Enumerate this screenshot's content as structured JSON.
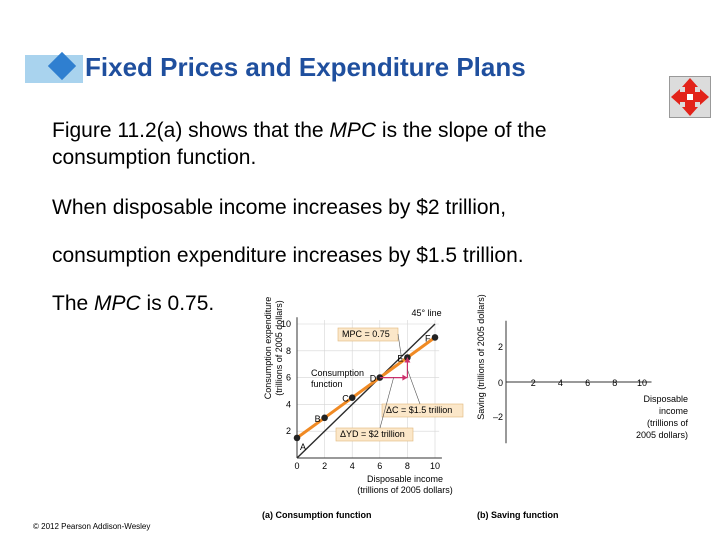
{
  "slide": {
    "title": "Fixed Prices and Expenditure Plans",
    "para1": {
      "pre": "Figure 11.2(a) shows that the ",
      "em": "MPC",
      "post": " is the slope of the consumption function."
    },
    "para2": "When disposable income increases by $2 trillion,",
    "para3": "consumption expenditure increases by $1.5 trillion.",
    "para4": {
      "pre": "The ",
      "em": "MPC",
      "post": " is 0.75."
    },
    "copyright": "© 2012 Pearson Addison-Wesley",
    "nav_icon": "move-arrows-icon"
  },
  "colors": {
    "title": "#1f4f9e",
    "accent": "#2f7fd0",
    "curve": "#f08a24",
    "label_box": "#fbe7c9",
    "arrow": "#cc2f6b"
  },
  "chart_data": [
    {
      "type": "line",
      "ylabel": "Consumption expenditure (trillions of 2005 dollars)",
      "xlabel": "Disposable income (trillions of 2005 dollars)",
      "caption": "(a) Consumption function",
      "xlim": [
        0,
        10
      ],
      "ylim": [
        0,
        10
      ],
      "xticks": [
        "0",
        "2",
        "4",
        "6",
        "8",
        "10"
      ],
      "yticks": [
        "2",
        "4",
        "6",
        "8",
        "10"
      ],
      "series": [
        {
          "name": "45° line",
          "x": [
            0,
            10
          ],
          "y": [
            0,
            10
          ]
        },
        {
          "name": "Consumption function",
          "x": [
            0,
            2,
            4,
            6,
            8,
            10
          ],
          "y": [
            1.5,
            3,
            4.5,
            6,
            7.5,
            9
          ]
        }
      ],
      "points": [
        {
          "label": "A",
          "x": 0,
          "y": 1.5
        },
        {
          "label": "B",
          "x": 2,
          "y": 3
        },
        {
          "label": "C",
          "x": 4,
          "y": 4.5
        },
        {
          "label": "D",
          "x": 6,
          "y": 6
        },
        {
          "label": "E",
          "x": 8,
          "y": 7.5
        },
        {
          "label": "F",
          "x": 10,
          "y": 9
        }
      ],
      "annotations": {
        "mpc": "MPC = 0.75",
        "dc": "ΔC = $1.5 trillion",
        "dyd": "ΔYD = $2 trillion"
      }
    },
    {
      "type": "line",
      "ylabel": "Saving (trillions of 2005 dollars)",
      "xlabel": "Disposable income (trillions of 2005 dollars)",
      "caption": "(b) Saving function",
      "xlim": [
        0,
        10
      ],
      "ylim": [
        -3,
        3
      ],
      "xticks": [
        "0",
        "2",
        "4",
        "6",
        "8",
        "10"
      ],
      "yticks": [
        "2",
        "–2"
      ]
    }
  ]
}
